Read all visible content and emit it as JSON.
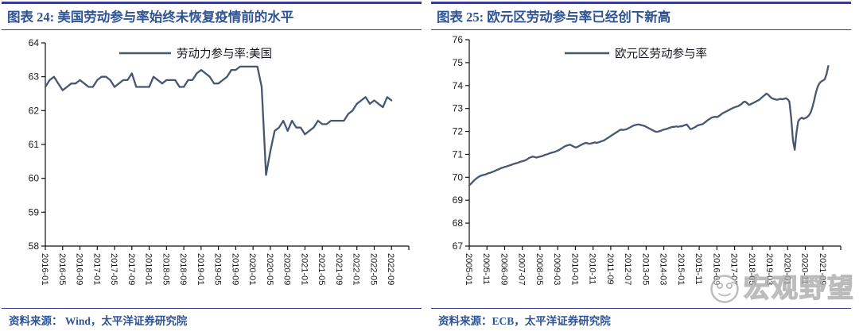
{
  "colors": {
    "rule": "#3b3b92",
    "title_text": "#2f5496",
    "source_text": "#2f5496",
    "series_line": "#47576f",
    "axis": "#111111",
    "tick_text": "#1a1a1a",
    "watermark_gray": "#ababab"
  },
  "watermark": {
    "logo": "smiley-face-logo",
    "text": "宏观野望"
  },
  "panels": [
    {
      "title": "图表 24: 美国劳动参与率始终未恢复疫情前的水平",
      "source": "资料来源：  Wind，太平洋证券研究院"
    },
    {
      "title": "图表 25:  欧元区劳动参与率已经创下新高",
      "source": "资料来源：ECB，太平洋证券研究院"
    }
  ],
  "chart_data": [
    {
      "type": "line",
      "title": "图表 24: 美国劳动参与率始终未恢复疫情前的水平",
      "legend_position": "top-center",
      "grid": false,
      "x_start": "2016-01",
      "x_end": "2022-09",
      "frequency": "monthly",
      "ylim": [
        58,
        64
      ],
      "yticks": [
        58,
        59,
        60,
        61,
        62,
        63,
        64
      ],
      "x_tick_step_months": 4,
      "x_axis_end_months": 84,
      "x_tick_labels": [
        "2016-01",
        "2016-05",
        "2016-09",
        "2017-01",
        "2017-05",
        "2017-09",
        "2018-01",
        "2018-05",
        "2018-09",
        "2019-01",
        "2019-05",
        "2019-09",
        "2020-01",
        "2020-05",
        "2020-09",
        "2021-01",
        "2021-05",
        "2021-09",
        "2022-01",
        "2022-05",
        "2022-09"
      ],
      "series": [
        {
          "name": "劳动力参与率:美国",
          "values": [
            62.7,
            62.9,
            63.0,
            62.8,
            62.6,
            62.7,
            62.8,
            62.8,
            62.9,
            62.8,
            62.7,
            62.7,
            62.9,
            63.0,
            63.0,
            62.9,
            62.7,
            62.8,
            62.9,
            62.9,
            63.1,
            62.7,
            62.7,
            62.7,
            62.7,
            63.0,
            62.9,
            62.8,
            62.9,
            62.9,
            62.9,
            62.7,
            62.7,
            62.9,
            62.9,
            63.1,
            63.2,
            63.1,
            63.0,
            62.8,
            62.8,
            62.9,
            63.0,
            63.2,
            63.2,
            63.3,
            63.3,
            63.3,
            63.3,
            63.3,
            62.7,
            60.1,
            60.8,
            61.4,
            61.5,
            61.7,
            61.4,
            61.7,
            61.5,
            61.5,
            61.3,
            61.4,
            61.5,
            61.7,
            61.6,
            61.6,
            61.7,
            61.7,
            61.7,
            61.7,
            61.9,
            62.0,
            62.2,
            62.3,
            62.4,
            62.2,
            62.3,
            62.2,
            62.1,
            62.4,
            62.3
          ]
        }
      ]
    },
    {
      "type": "line",
      "title": "图表 25: 欧元区劳动参与率已经创下新高",
      "legend_position": "top-center",
      "grid": false,
      "x_start": "2005-01",
      "x_end": "2021-12",
      "frequency": "monthly",
      "ylim": [
        67,
        76
      ],
      "yticks": [
        67,
        68,
        69,
        70,
        71,
        72,
        73,
        74,
        75,
        76
      ],
      "x_tick_step_months": 10,
      "x_axis_end_months": 210,
      "x_tick_labels": [
        "2005-01",
        "2005-11",
        "2006-09",
        "2007-07",
        "2008-05",
        "2009-03",
        "2010-01",
        "2010-11",
        "2011-09",
        "2012-07",
        "2013-05",
        "2014-03",
        "2015-01",
        "2015-11",
        "2016-09",
        "2017-07",
        "2018-05",
        "2019-03",
        "2020-01",
        "2020-11",
        "2021-09"
      ],
      "series": [
        {
          "name": "欧元区劳动参与率",
          "values": [
            69.65,
            69.72,
            69.8,
            69.88,
            69.95,
            70.0,
            70.05,
            70.08,
            70.1,
            70.12,
            70.15,
            70.18,
            70.2,
            70.23,
            70.26,
            70.3,
            70.33,
            70.36,
            70.4,
            70.42,
            70.45,
            70.47,
            70.5,
            70.52,
            70.55,
            70.58,
            70.6,
            70.62,
            70.65,
            70.68,
            70.7,
            70.72,
            70.75,
            70.8,
            70.85,
            70.88,
            70.9,
            70.88,
            70.86,
            70.88,
            70.9,
            70.92,
            70.95,
            70.98,
            71.0,
            71.03,
            71.06,
            71.08,
            71.1,
            71.13,
            71.16,
            71.2,
            71.25,
            71.3,
            71.35,
            71.38,
            71.4,
            71.42,
            71.38,
            71.34,
            71.3,
            71.32,
            71.36,
            71.4,
            71.44,
            71.48,
            71.5,
            71.48,
            71.46,
            71.48,
            71.5,
            71.52,
            71.5,
            71.52,
            71.55,
            71.58,
            71.6,
            71.65,
            71.7,
            71.75,
            71.8,
            71.85,
            71.9,
            71.95,
            72.0,
            72.05,
            72.08,
            72.06,
            72.08,
            72.1,
            72.14,
            72.18,
            72.22,
            72.26,
            72.28,
            72.3,
            72.3,
            72.28,
            72.26,
            72.24,
            72.2,
            72.16,
            72.12,
            72.08,
            72.04,
            72.0,
            71.98,
            72.0,
            72.02,
            72.05,
            72.08,
            72.1,
            72.12,
            72.15,
            72.18,
            72.2,
            72.2,
            72.22,
            72.2,
            72.22,
            72.22,
            72.25,
            72.28,
            72.3,
            72.2,
            72.1,
            72.12,
            72.16,
            72.2,
            72.26,
            72.28,
            72.3,
            72.32,
            72.38,
            72.44,
            72.5,
            72.55,
            72.6,
            72.62,
            72.64,
            72.62,
            72.66,
            72.72,
            72.78,
            72.82,
            72.86,
            72.9,
            72.94,
            72.98,
            73.02,
            73.05,
            73.08,
            73.1,
            73.15,
            73.2,
            73.28,
            73.3,
            73.24,
            73.16,
            73.18,
            73.22,
            73.26,
            73.3,
            73.34,
            73.38,
            73.45,
            73.52,
            73.58,
            73.65,
            73.6,
            73.52,
            73.45,
            73.42,
            73.4,
            73.38,
            73.4,
            73.42,
            73.4,
            73.42,
            73.45,
            73.4,
            73.3,
            72.6,
            71.6,
            71.2,
            71.95,
            72.45,
            72.55,
            72.6,
            72.55,
            72.58,
            72.62,
            72.7,
            72.82,
            73.05,
            73.35,
            73.7,
            73.95,
            74.1,
            74.18,
            74.22,
            74.28,
            74.5,
            74.85
          ]
        }
      ]
    }
  ]
}
